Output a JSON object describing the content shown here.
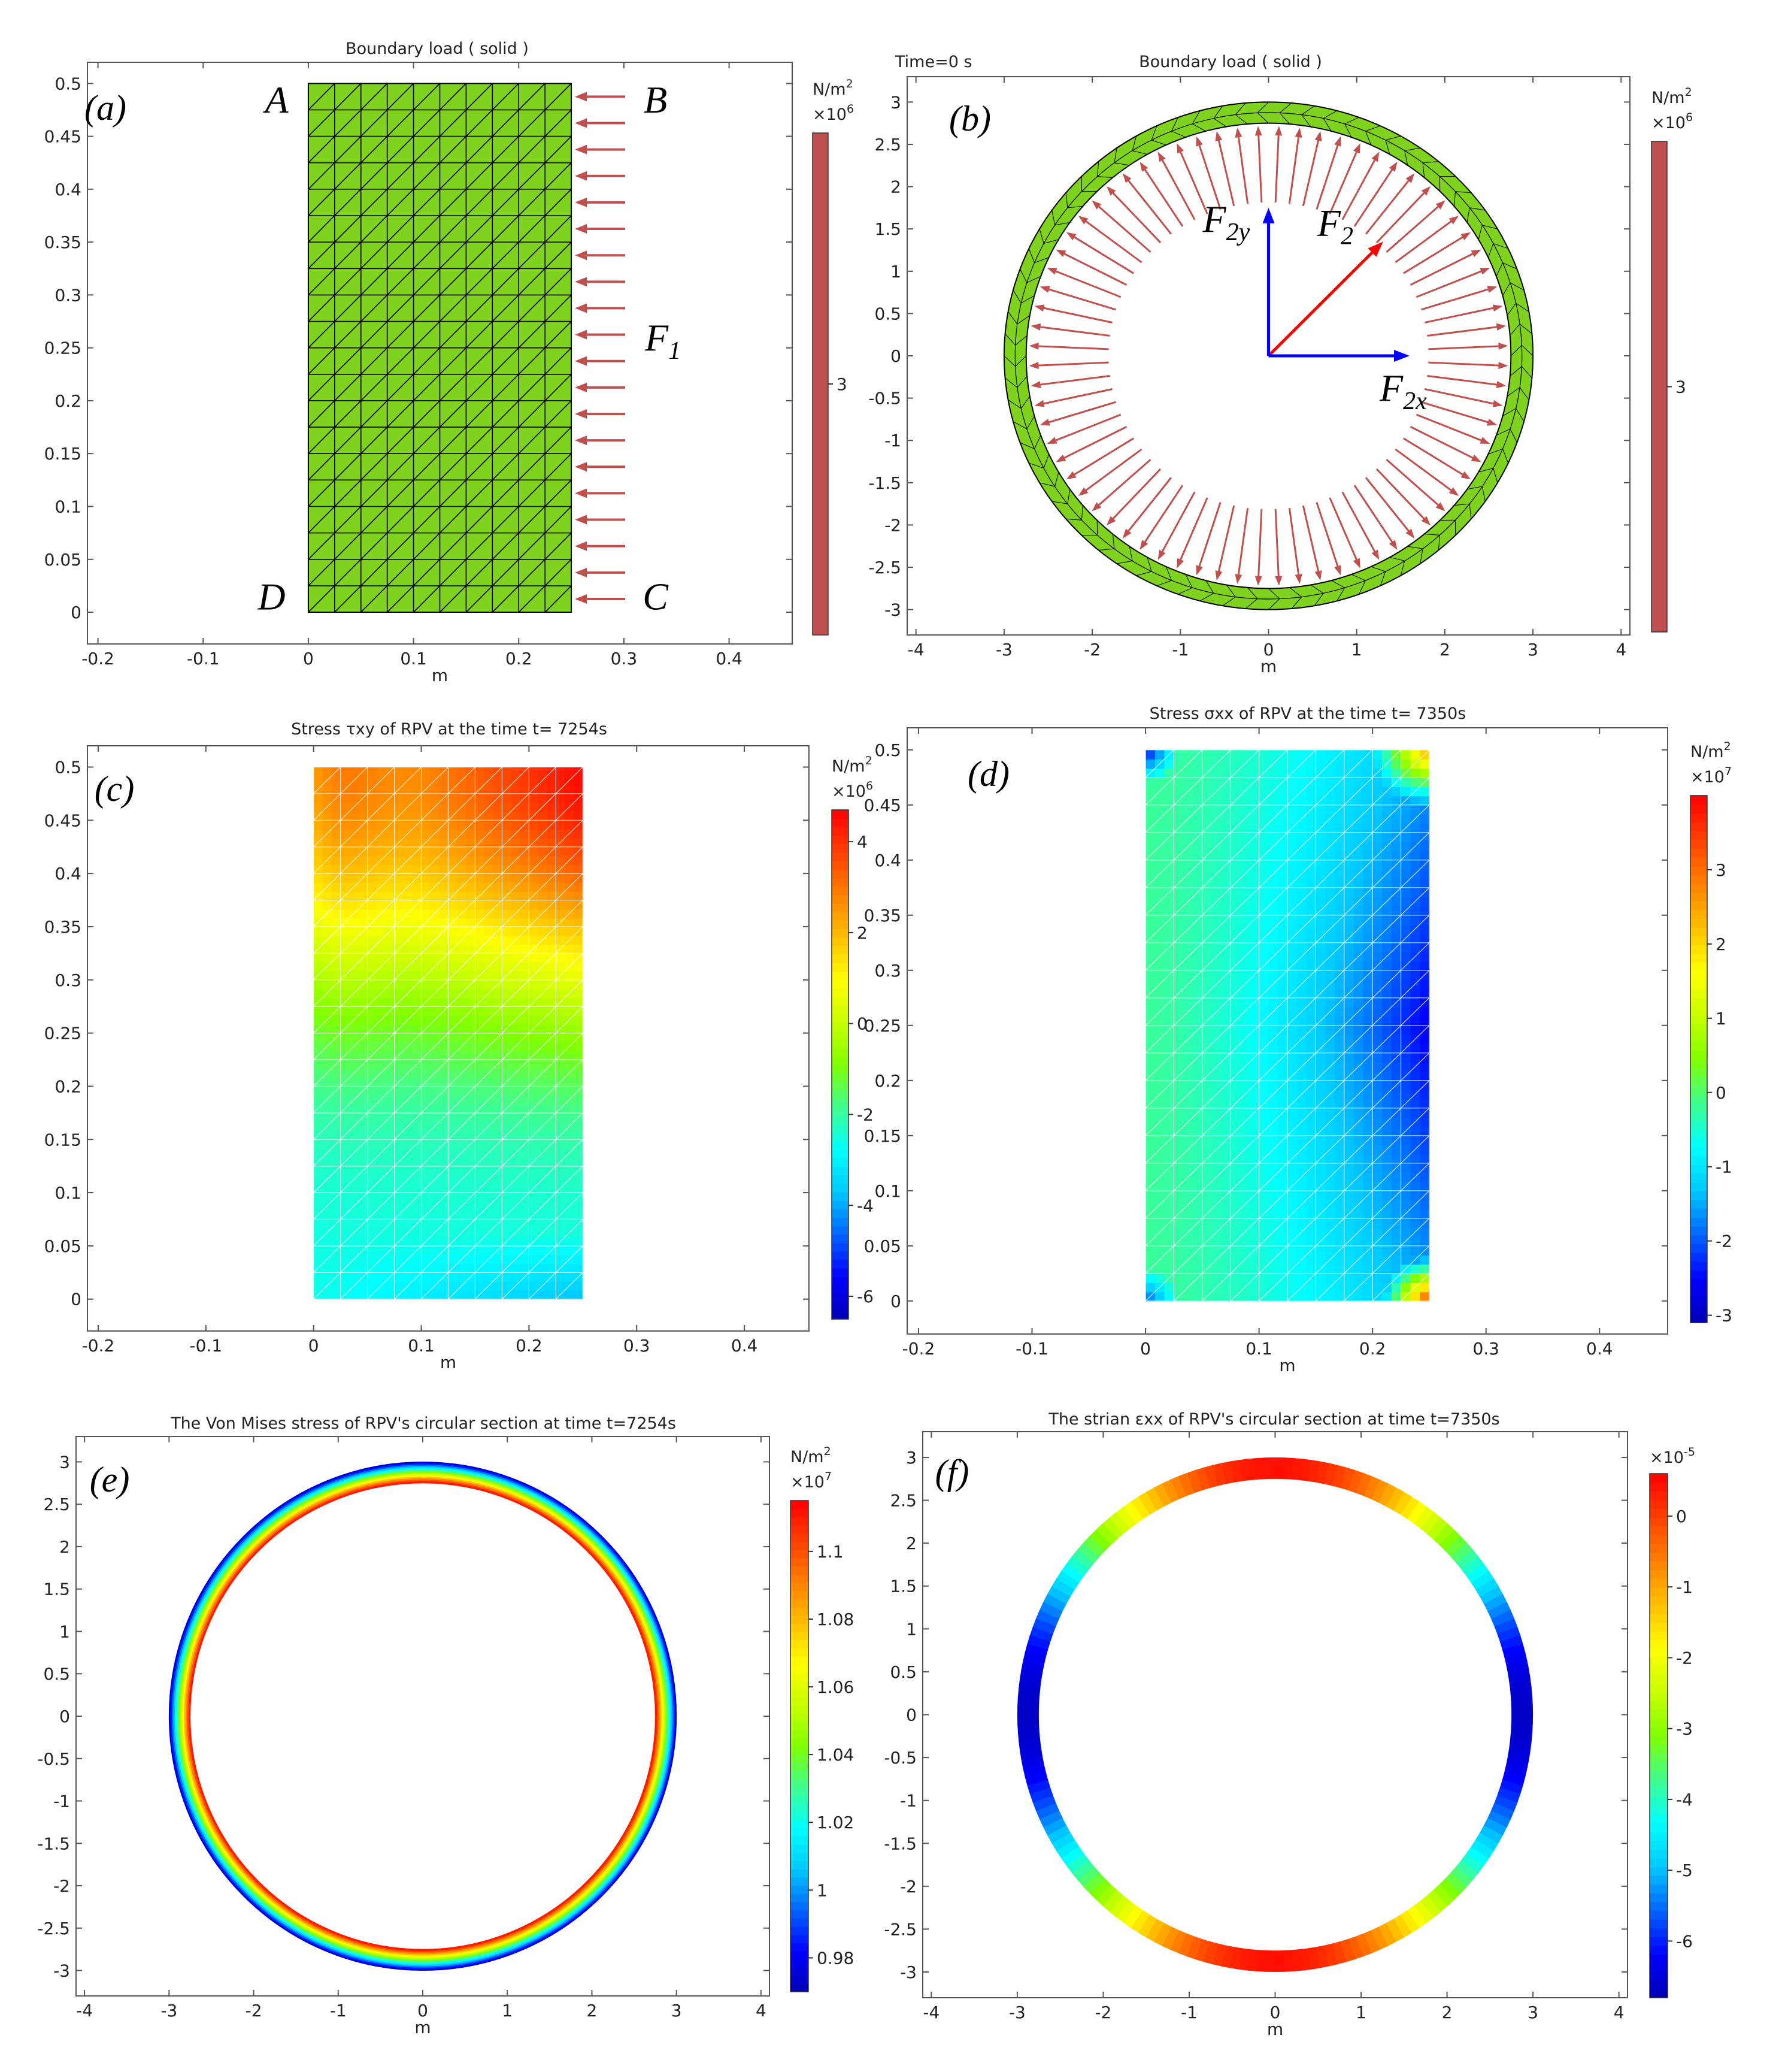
{
  "figure_title": "RPV boundary load and stress/strain results",
  "colormap": [
    "#0000b4",
    "#0000ff",
    "#0064ff",
    "#00c8ff",
    "#00ffff",
    "#40ff90",
    "#80ff00",
    "#c8ff00",
    "#ffff00",
    "#ffc000",
    "#ff8000",
    "#ff4000",
    "#ff0000"
  ],
  "chart_data": [
    {
      "id": "a",
      "type": "mesh",
      "panel_label": "(a)",
      "title": "Boundary load ( solid )",
      "xlabel": "m",
      "ylabel": "",
      "xlim": [
        -0.21,
        0.46
      ],
      "ylim": [
        -0.03,
        0.52
      ],
      "xticks": [
        -0.2,
        -0.1,
        0,
        0.1,
        0.2,
        0.3,
        0.4
      ],
      "xtick_labels": [
        "-0.2",
        "-0.1",
        "0",
        "0.1",
        "0.2",
        "0.3",
        "0.4"
      ],
      "yticks": [
        0,
        0.05,
        0.1,
        0.15,
        0.2,
        0.25,
        0.3,
        0.35,
        0.4,
        0.45,
        0.5
      ],
      "ytick_labels": [
        "0",
        "0.05",
        "0.1",
        "0.15",
        "0.2",
        "0.25",
        "0.3",
        "0.35",
        "0.4",
        "0.45",
        "0.5"
      ],
      "domain": {
        "x": [
          0,
          0.25
        ],
        "y": [
          0,
          0.5
        ],
        "nx": 10,
        "ny": 20
      },
      "mesh_color": "#7fd21e",
      "arrow_count": 20,
      "arrow_color": "#c0504d",
      "corner_labels": [
        {
          "text": "A",
          "x": -0.03,
          "y": 0.485
        },
        {
          "text": "B",
          "x": 0.33,
          "y": 0.485
        },
        {
          "text": "C",
          "x": 0.33,
          "y": 0.015
        },
        {
          "text": "D",
          "x": -0.035,
          "y": 0.015
        }
      ],
      "force_label": {
        "main": "F",
        "sub": "1",
        "x": 0.32,
        "y": 0.26
      },
      "colorbar": {
        "unit": "N/m",
        "unit_sup": "2",
        "mult": "×10",
        "mult_sup": "6",
        "min": 2.5,
        "max": 3.5,
        "ticks": [
          3
        ],
        "tick_labels": [
          "3"
        ],
        "solid_color": "#c0504d"
      }
    },
    {
      "id": "b",
      "type": "ring-mesh",
      "panel_label": "(b)",
      "title": "Boundary load ( solid )",
      "time_text": "Time=0 s",
      "xlabel": "m",
      "ylabel": "",
      "xlim": [
        -4.1,
        4.1
      ],
      "ylim": [
        -3.3,
        3.3
      ],
      "xticks": [
        -4,
        -3,
        -2,
        -1,
        0,
        1,
        2,
        3,
        4
      ],
      "xtick_labels": [
        "-4",
        "-3",
        "-2",
        "-1",
        "0",
        "1",
        "2",
        "3",
        "4"
      ],
      "yticks": [
        -3,
        -2.5,
        -2,
        -1.5,
        -1,
        -0.5,
        0,
        0.5,
        1,
        1.5,
        2,
        2.5,
        3
      ],
      "ytick_labels": [
        "-3",
        "-2.5",
        "-2",
        "-1.5",
        "-1",
        "-0.5",
        "0",
        "0.5",
        "1",
        "1.5",
        "2",
        "2.5",
        "3"
      ],
      "ring": {
        "r_inner": 2.75,
        "r_outer": 3.0
      },
      "mesh_color": "#7fd21e",
      "arrow_count": 72,
      "arrow_color": "#c0504d",
      "vectors": [
        {
          "name": "F2",
          "main": "F",
          "sub": "2",
          "dx": 1.3,
          "dy": 1.35,
          "color": "#ff0000"
        },
        {
          "name": "F2x",
          "main": "F",
          "sub": "2x",
          "dx": 1.6,
          "dy": 0,
          "color": "#0000ff"
        },
        {
          "name": "F2y",
          "main": "F",
          "sub": "2y",
          "dx": 0,
          "dy": 1.75,
          "color": "#0000ff"
        }
      ],
      "colorbar": {
        "unit": "N/m",
        "unit_sup": "2",
        "mult": "×10",
        "mult_sup": "6",
        "min": 2.5,
        "max": 3.5,
        "ticks": [
          3
        ],
        "tick_labels": [
          "3"
        ],
        "solid_color": "#c0504d"
      }
    },
    {
      "id": "c",
      "type": "heatmap",
      "panel_label": "(c)",
      "title": "Stress τxy of RPV at the time t= 7254s",
      "xlabel": "m",
      "ylabel": "",
      "xlim": [
        -0.21,
        0.46
      ],
      "ylim": [
        -0.03,
        0.52
      ],
      "xticks": [
        -0.2,
        -0.1,
        0,
        0.1,
        0.2,
        0.3,
        0.4
      ],
      "xtick_labels": [
        "-0.2",
        "-0.1",
        "0",
        "0.1",
        "0.2",
        "0.3",
        "0.4"
      ],
      "yticks": [
        0,
        0.05,
        0.1,
        0.15,
        0.2,
        0.25,
        0.3,
        0.35,
        0.4,
        0.45,
        0.5
      ],
      "ytick_labels": [
        "0",
        "0.05",
        "0.1",
        "0.15",
        "0.2",
        "0.25",
        "0.3",
        "0.35",
        "0.4",
        "0.45",
        "0.5"
      ],
      "domain": {
        "x": [
          0,
          0.25
        ],
        "y": [
          0,
          0.5
        ],
        "nx": 10,
        "ny": 20
      },
      "value_range": [
        -6.5,
        4.7
      ],
      "colorbar": {
        "unit": "N/m",
        "unit_sup": "2",
        "mult": "×10",
        "mult_sup": "6",
        "min": -6.5,
        "max": 4.7,
        "ticks": [
          -6,
          -4,
          -2,
          0,
          2,
          4
        ],
        "tick_labels": [
          "-6",
          "-4",
          "-2",
          "0",
          "2",
          "4"
        ]
      }
    },
    {
      "id": "d",
      "type": "heatmap",
      "panel_label": "(d)",
      "title": "Stress σxx of RPV at the time t= 7350s",
      "xlabel": "m",
      "ylabel": "",
      "xlim": [
        -0.21,
        0.46
      ],
      "ylim": [
        -0.03,
        0.52
      ],
      "xticks": [
        -0.2,
        -0.1,
        0,
        0.1,
        0.2,
        0.3,
        0.4
      ],
      "xtick_labels": [
        "-0.2",
        "-0.1",
        "0",
        "0.1",
        "0.2",
        "0.3",
        "0.4"
      ],
      "yticks": [
        0,
        0.05,
        0.1,
        0.15,
        0.2,
        0.25,
        0.3,
        0.35,
        0.4,
        0.45,
        0.5
      ],
      "ytick_labels": [
        "0",
        "0.05",
        "0.1",
        "0.15",
        "0.2",
        "0.25",
        "0.3",
        "0.35",
        "0.4",
        "0.45",
        "0.5"
      ],
      "domain": {
        "x": [
          0,
          0.25
        ],
        "y": [
          0,
          0.5
        ],
        "nx": 10,
        "ny": 20
      },
      "value_range": [
        -3.1,
        4.0
      ],
      "colorbar": {
        "unit": "N/m",
        "unit_sup": "2",
        "mult": "×10",
        "mult_sup": "7",
        "min": -3.1,
        "max": 4.0,
        "ticks": [
          -3,
          -2,
          -1,
          0,
          1,
          2,
          3
        ],
        "tick_labels": [
          "-3",
          "-2",
          "-1",
          "0",
          "1",
          "2",
          "3"
        ]
      }
    },
    {
      "id": "e",
      "type": "ring-heatmap",
      "panel_label": "(e)",
      "title": "The Von Mises stress of RPV's circular section at time t=7254s",
      "xlabel": "m",
      "ylabel": "",
      "xlim": [
        -4.1,
        4.1
      ],
      "ylim": [
        -3.3,
        3.3
      ],
      "xticks": [
        -4,
        -3,
        -2,
        -1,
        0,
        1,
        2,
        3,
        4
      ],
      "xtick_labels": [
        "-4",
        "-3",
        "-2",
        "-1",
        "0",
        "1",
        "2",
        "3",
        "4"
      ],
      "yticks": [
        -3,
        -2.5,
        -2,
        -1.5,
        -1,
        -0.5,
        0,
        0.5,
        1,
        1.5,
        2,
        2.5,
        3
      ],
      "ytick_labels": [
        "-3",
        "-2.5",
        "-2",
        "-1.5",
        "-1",
        "-0.5",
        "0",
        "0.5",
        "1",
        "1.5",
        "2",
        "2.5",
        "3"
      ],
      "ring": {
        "r_inner": 2.75,
        "r_outer": 3.0
      },
      "value_range": [
        0.97,
        1.115
      ],
      "colorbar": {
        "unit": "N/m",
        "unit_sup": "2",
        "mult": "×10",
        "mult_sup": "7",
        "min": 0.97,
        "max": 1.115,
        "ticks": [
          0.98,
          1,
          1.02,
          1.04,
          1.06,
          1.08,
          1.1
        ],
        "tick_labels": [
          "0.98",
          "1",
          "1.02",
          "1.04",
          "1.06",
          "1.08",
          "1.1"
        ]
      }
    },
    {
      "id": "f",
      "type": "ring-heatmap",
      "panel_label": "(f)",
      "title": "The strian εxx of RPV's circular section at time t=7350s",
      "xlabel": "m",
      "ylabel": "",
      "xlim": [
        -4.1,
        4.1
      ],
      "ylim": [
        -3.3,
        3.3
      ],
      "xticks": [
        -4,
        -3,
        -2,
        -1,
        0,
        1,
        2,
        3,
        4
      ],
      "xtick_labels": [
        "-4",
        "-3",
        "-2",
        "-1",
        "0",
        "1",
        "2",
        "3",
        "4"
      ],
      "yticks": [
        -3,
        -2.5,
        -2,
        -1.5,
        -1,
        -0.5,
        0,
        0.5,
        1,
        1.5,
        2,
        2.5,
        3
      ],
      "ytick_labels": [
        "-3",
        "-2.5",
        "-2",
        "-1.5",
        "-1",
        "-0.5",
        "0",
        "0.5",
        "1",
        "1.5",
        "2",
        "2.5",
        "3"
      ],
      "ring": {
        "r_inner": 2.75,
        "r_outer": 3.0
      },
      "value_range": [
        -6.8,
        0.6
      ],
      "colorbar": {
        "unit": "",
        "unit_sup": "",
        "mult": "×10",
        "mult_sup": "-5",
        "min": -6.8,
        "max": 0.6,
        "ticks": [
          -6,
          -5,
          -4,
          -3,
          -2,
          -1,
          0
        ],
        "tick_labels": [
          "-6",
          "-5",
          "-4",
          "-3",
          "-2",
          "-1",
          "0"
        ]
      }
    }
  ]
}
